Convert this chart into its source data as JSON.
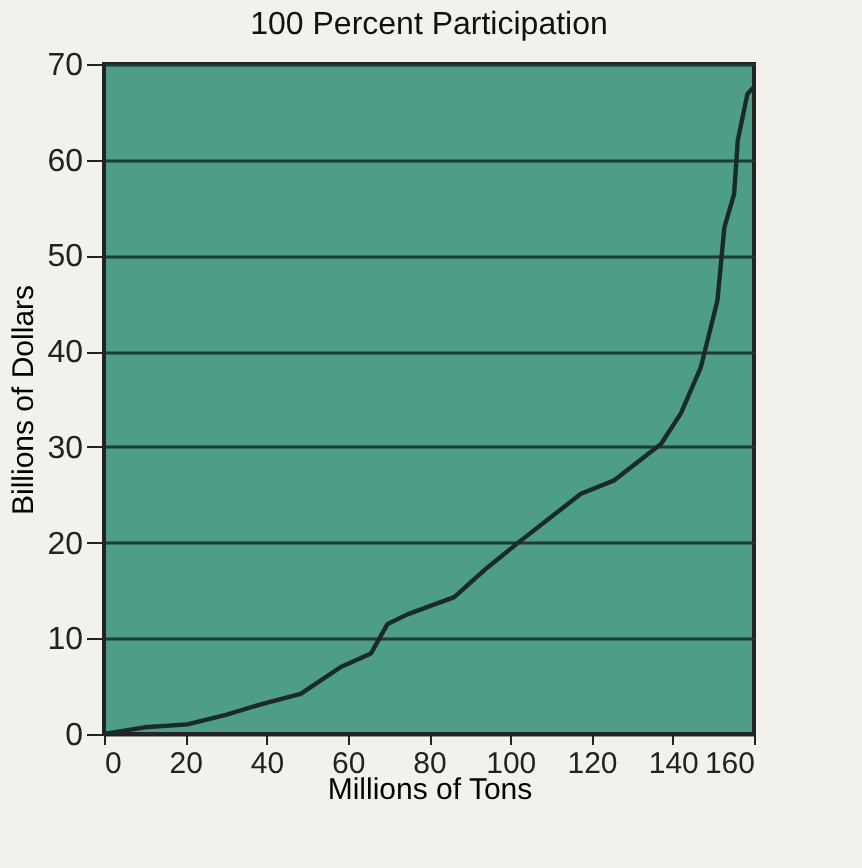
{
  "chart_data": {
    "type": "line",
    "title": "100 Percent Participation",
    "xlabel": "Millions of Tons",
    "ylabel": "Billions of Dollars",
    "x": [
      0,
      10,
      20.5,
      30,
      38.6,
      48.4,
      58.3,
      65.7,
      69.8,
      74.7,
      86.2,
      94.4,
      102.6,
      117.4,
      125.6,
      137.1,
      142,
      146.9,
      151,
      152.7,
      155.1,
      156,
      158.4,
      160
    ],
    "series": [
      {
        "color": "#1a2a26",
        "values": [
          0,
          0.7,
          1.0,
          2.0,
          3.1,
          4.2,
          7.0,
          8.4,
          11.5,
          12.5,
          14.3,
          17.4,
          20.2,
          25.1,
          26.5,
          30.3,
          33.5,
          38.3,
          45.3,
          52.9,
          56.4,
          62,
          66.9,
          67.6
        ]
      }
    ],
    "xlim": [
      0,
      160
    ],
    "xticks": [
      0,
      20,
      40,
      60,
      80,
      100,
      120,
      140,
      160
    ],
    "ylim": [
      0,
      70
    ],
    "yticks": [
      0,
      10,
      20,
      30,
      40,
      50,
      60,
      70
    ],
    "grid": "y",
    "marker": "none",
    "line_style": "solid"
  }
}
